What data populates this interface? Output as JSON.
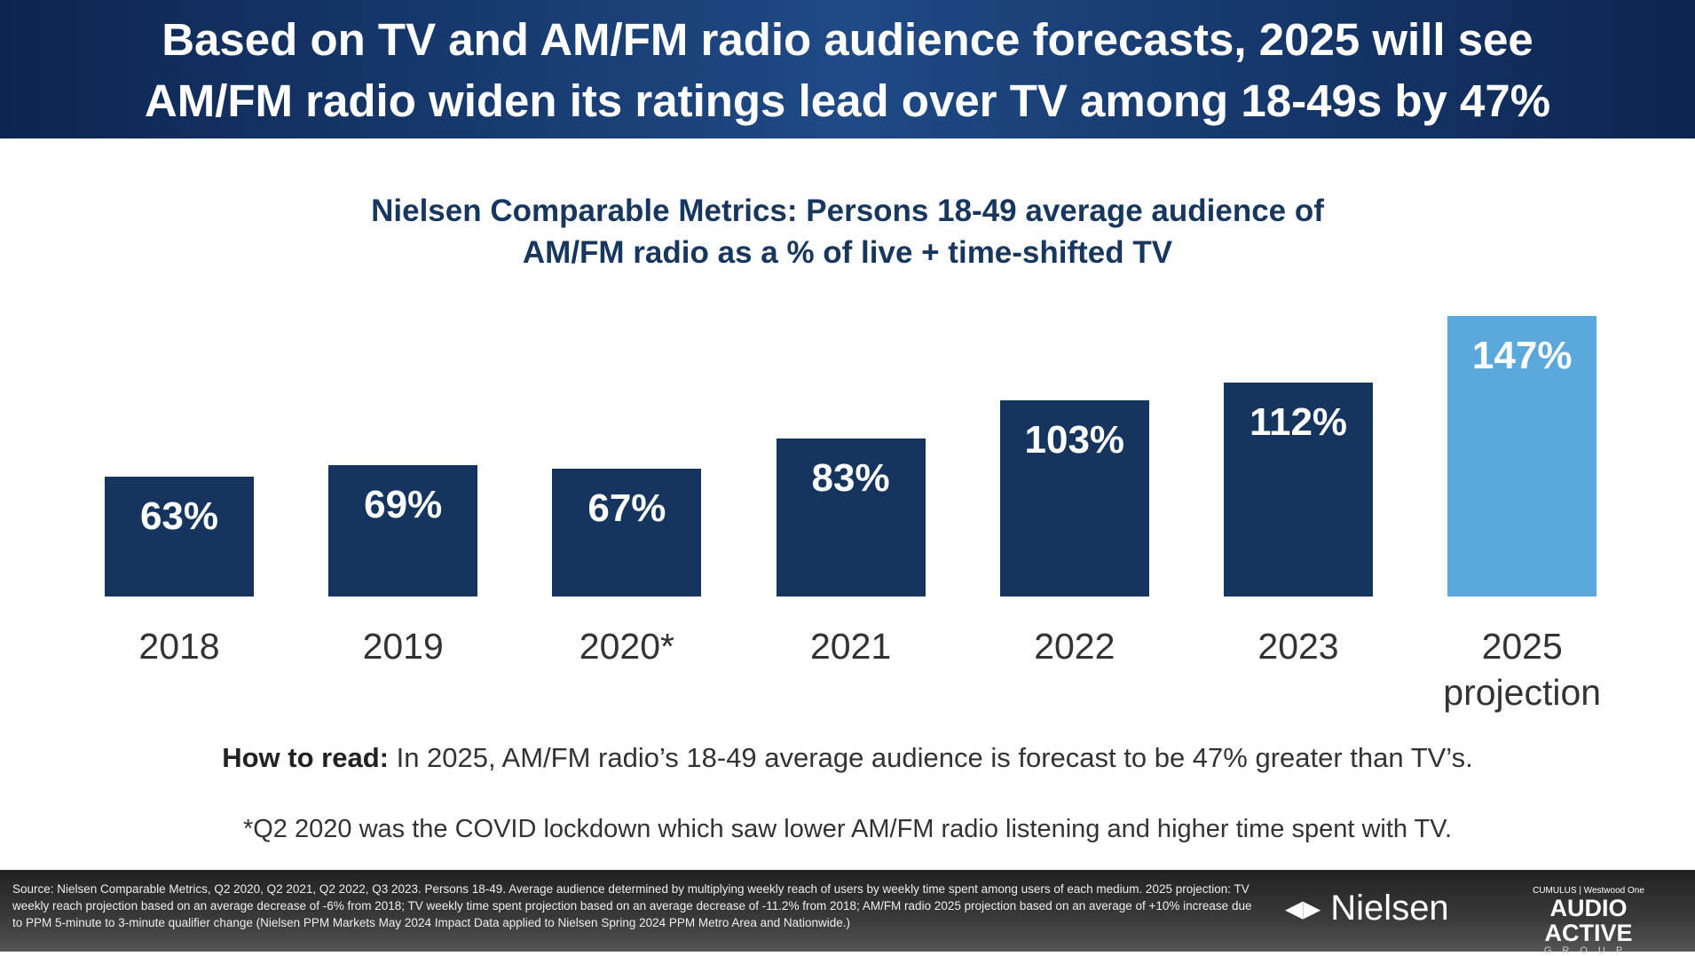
{
  "header": {
    "line1": "Based on TV and AM/FM radio audience forecasts, 2025 will see",
    "line2": "AM/FM radio widen its ratings lead over TV among 18-49s by 47%"
  },
  "chart_data": {
    "type": "bar",
    "title": "Nielsen Comparable Metrics: Persons 18-49 average audience of AM/FM radio as a % of live + time-shifted TV",
    "title_line1": "Nielsen Comparable Metrics: Persons 18-49 average audience of",
    "title_line2": "AM/FM radio as a % of live + time-shifted TV",
    "categories": [
      "2018",
      "2019",
      "2020*",
      "2021",
      "2022",
      "2023",
      "2025"
    ],
    "category_sub": [
      "",
      "",
      "",
      "",
      "",
      "",
      "projection"
    ],
    "values": [
      63,
      69,
      67,
      83,
      103,
      112,
      147
    ],
    "value_labels": [
      "63%",
      "69%",
      "67%",
      "83%",
      "103%",
      "112%",
      "147%"
    ],
    "colors": [
      "#15355f",
      "#15355f",
      "#15355f",
      "#15355f",
      "#15355f",
      "#15355f",
      "#5aa8dc"
    ],
    "xlabel": "",
    "ylabel": "",
    "ylim": [
      0,
      147
    ],
    "grid": false
  },
  "howto": {
    "label": "How to read:",
    "text": " In 2025, AM/FM radio’s 18-49 average audience is forecast to be 47% greater than TV’s."
  },
  "note": "*Q2 2020 was the COVID lockdown which saw lower AM/FM radio listening and higher time spent with TV.",
  "footer": {
    "source": "Source: Nielsen Comparable Metrics, Q2 2020, Q2 2021, Q2 2022, Q3 2023. Persons 18-49. Average audience determined by multiplying weekly reach of users by weekly time spent among users of each medium. 2025 projection: TV weekly reach projection based on an average decrease of -6% from 2018; TV weekly time spent projection based on an average decrease of -11.2% from 2018; AM/FM radio 2025 projection based on an average of +10% increase due to PPM 5-minute to 3-minute qualifier change (Nielsen PPM Markets May 2024 Impact Data applied to Nielsen Spring 2024 PPM Metro Area and Nationwide.)",
    "nielsen": "Nielsen",
    "aag_top": "CUMULUS | Westwood One",
    "aag_mid": "AUDIO ACTIVE",
    "aag_bot": "GROUP"
  }
}
